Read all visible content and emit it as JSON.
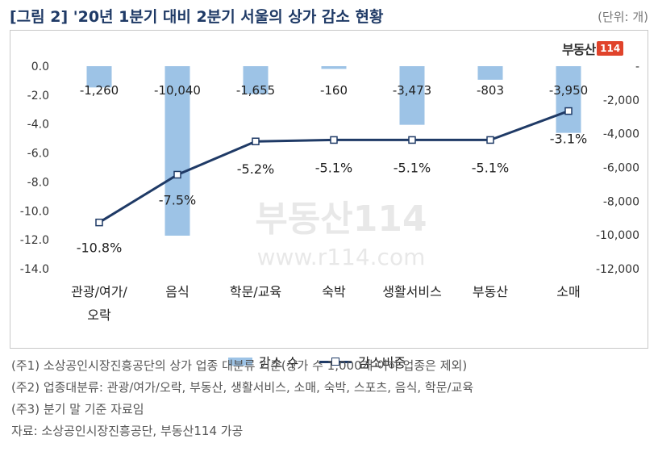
{
  "title": "[그림 2] '20년 1분기 대비 2분기 서울의 상가 감소 현황",
  "unit": "(단위: 개)",
  "logo": {
    "text": "부동산",
    "badge": "114"
  },
  "watermark": {
    "main": "부동산114",
    "url": "www.r114.com"
  },
  "chart_data": {
    "type": "bar+line",
    "categories": [
      "관광/여가/오락",
      "음식",
      "학문/교육",
      "숙박",
      "생활서비스",
      "부동산",
      "소매"
    ],
    "category_labels": [
      [
        "관광/여가/",
        "오락"
      ],
      [
        "음식"
      ],
      [
        "학문/교육"
      ],
      [
        "숙박"
      ],
      [
        "생활서비스"
      ],
      [
        "부동산"
      ],
      [
        "소매"
      ]
    ],
    "bar_series": {
      "name": "감소 수",
      "axis": "right",
      "values": [
        -1260,
        -10040,
        -1655,
        -160,
        -3473,
        -803,
        -3950
      ],
      "labels": [
        "-1,260",
        "-10,040",
        "-1,655",
        "-160",
        "-3,473",
        "-803",
        "-3,950"
      ],
      "color": "#9dc3e6"
    },
    "line_series": {
      "name": "감소비중",
      "axis": "left",
      "values": [
        -10.8,
        -7.5,
        -5.2,
        -5.1,
        -5.1,
        -5.1,
        -3.1
      ],
      "labels": [
        "-10.8%",
        "-7.5%",
        "-5.2%",
        "-5.1%",
        "-5.1%",
        "-5.1%",
        "-3.1%"
      ],
      "color": "#1f3a66"
    },
    "left_axis": {
      "ylim": [
        -14,
        0
      ],
      "ticks": [
        "0.0",
        "-2.0",
        "-4.0",
        "-6.0",
        "-8.0",
        "-10.0",
        "-12.0",
        "-14.0"
      ]
    },
    "right_axis": {
      "ylim": [
        -12000,
        0
      ],
      "ticks": [
        "-",
        "-2,000",
        "-4,000",
        "-6,000",
        "-8,000",
        "-10,000",
        "-12,000"
      ]
    },
    "grid": false,
    "legend_position": "bottom"
  },
  "notes": [
    "(주1) 소상공인시장진흥공단의 상가 업종 대분류 기준(상가 수 1,000개 이하 업종은 제외)",
    "(주2) 업종대분류: 관광/여가/오락, 부동산, 생활서비스, 소매, 숙박, 스포츠, 음식, 학문/교육",
    "(주3) 분기 말 기준 자료임",
    "자료: 소상공인시장진흥공단, 부동산114 가공"
  ]
}
